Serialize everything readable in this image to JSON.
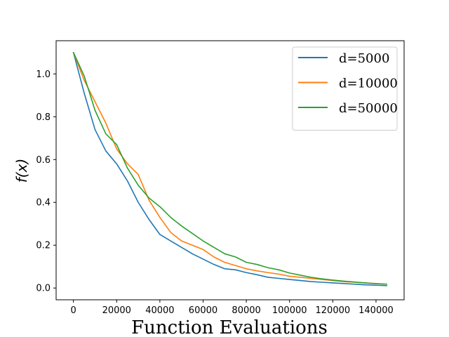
{
  "chart_data": {
    "type": "line",
    "title": "",
    "xlabel": "Function Evaluations",
    "ylabel": "f(x)",
    "xlim": [
      -8000,
      153000
    ],
    "ylim": [
      -0.055,
      1.155
    ],
    "xticks": [
      0,
      20000,
      40000,
      60000,
      80000,
      100000,
      120000,
      140000
    ],
    "xtick_labels": [
      "0",
      "20000",
      "40000",
      "60000",
      "80000",
      "100000",
      "120000",
      "140000"
    ],
    "yticks": [
      0.0,
      0.2,
      0.4,
      0.6,
      0.8,
      1.0
    ],
    "ytick_labels": [
      "0.0",
      "0.2",
      "0.4",
      "0.6",
      "0.8",
      "1.0"
    ],
    "grid": false,
    "legend_position": "top-right",
    "series": [
      {
        "name": "d=5000",
        "color": "#1f77b4",
        "x": [
          0,
          5000,
          10000,
          15000,
          20000,
          25000,
          30000,
          35000,
          40000,
          45000,
          50000,
          55000,
          60000,
          65000,
          70000,
          75000,
          80000,
          85000,
          90000,
          95000,
          100000,
          105000,
          110000,
          115000,
          120000,
          125000,
          130000,
          135000,
          140000,
          145000
        ],
        "y": [
          1.1,
          0.91,
          0.74,
          0.64,
          0.58,
          0.5,
          0.4,
          0.32,
          0.25,
          0.22,
          0.19,
          0.16,
          0.135,
          0.11,
          0.09,
          0.085,
          0.072,
          0.062,
          0.05,
          0.045,
          0.04,
          0.035,
          0.03,
          0.027,
          0.024,
          0.021,
          0.018,
          0.015,
          0.013,
          0.011
        ]
      },
      {
        "name": "d=10000",
        "color": "#ff7f0e",
        "x": [
          0,
          5000,
          10000,
          15000,
          20000,
          25000,
          30000,
          35000,
          40000,
          45000,
          50000,
          55000,
          60000,
          65000,
          70000,
          75000,
          80000,
          85000,
          90000,
          95000,
          100000,
          105000,
          110000,
          115000,
          120000,
          125000,
          130000,
          135000,
          140000,
          145000
        ],
        "y": [
          1.1,
          0.97,
          0.87,
          0.77,
          0.65,
          0.58,
          0.53,
          0.41,
          0.33,
          0.26,
          0.22,
          0.2,
          0.18,
          0.145,
          0.12,
          0.105,
          0.09,
          0.08,
          0.072,
          0.065,
          0.055,
          0.05,
          0.045,
          0.04,
          0.035,
          0.03,
          0.027,
          0.024,
          0.021,
          0.018
        ]
      },
      {
        "name": "d=50000",
        "color": "#2ca02c",
        "x": [
          0,
          5000,
          10000,
          15000,
          20000,
          25000,
          30000,
          35000,
          40000,
          45000,
          50000,
          55000,
          60000,
          65000,
          70000,
          75000,
          80000,
          85000,
          90000,
          95000,
          100000,
          105000,
          110000,
          115000,
          120000,
          125000,
          130000,
          135000,
          140000,
          145000
        ],
        "y": [
          1.1,
          0.99,
          0.83,
          0.72,
          0.67,
          0.56,
          0.48,
          0.42,
          0.38,
          0.33,
          0.29,
          0.255,
          0.22,
          0.19,
          0.16,
          0.145,
          0.12,
          0.11,
          0.095,
          0.085,
          0.07,
          0.06,
          0.05,
          0.043,
          0.037,
          0.032,
          0.028,
          0.024,
          0.02,
          0.018
        ]
      }
    ]
  }
}
